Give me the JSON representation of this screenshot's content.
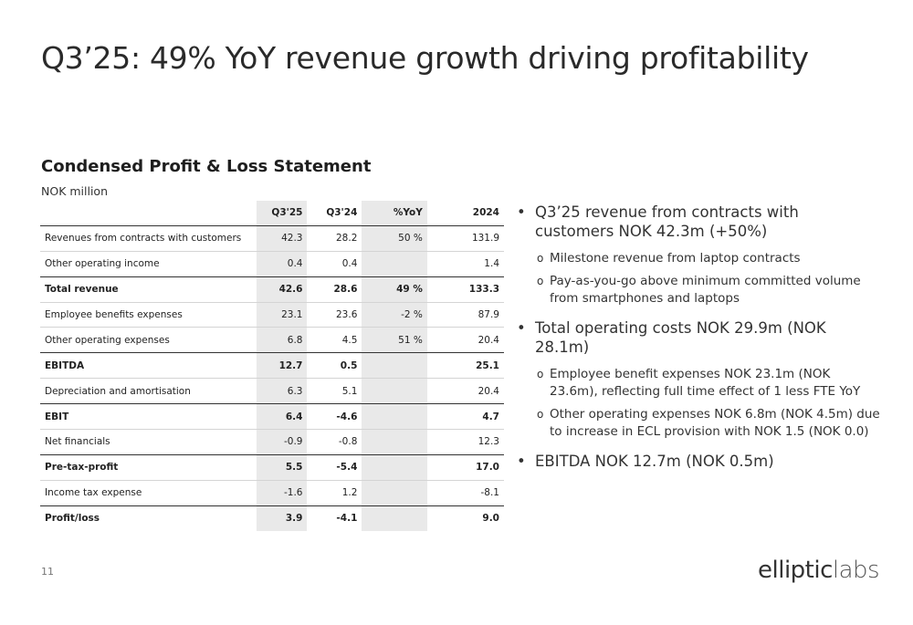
{
  "title": "Q3’25: 49% YoY revenue growth driving profitability",
  "section_title": "Condensed Profit & Loss Statement",
  "unit": "NOK million",
  "table": {
    "headers": [
      "",
      "Q3'25",
      "Q3'24",
      "%YoY",
      "2024"
    ],
    "rows": [
      {
        "label": "Revenues from contracts with customers",
        "q325": "42.3",
        "q324": "28.2",
        "yoy": "50 %",
        "y2024": "131.9"
      },
      {
        "label": "Other operating income",
        "q325": "0.4",
        "q324": "0.4",
        "yoy": "",
        "y2024": "1.4"
      },
      {
        "label": "Total revenue",
        "q325": "42.6",
        "q324": "28.6",
        "yoy": "49 %",
        "y2024": "133.3"
      },
      {
        "label": "Employee benefits expenses",
        "q325": "23.1",
        "q324": "23.6",
        "yoy": "-2 %",
        "y2024": "87.9"
      },
      {
        "label": "Other operating expenses",
        "q325": "6.8",
        "q324": "4.5",
        "yoy": "51 %",
        "y2024": "20.4"
      },
      {
        "label": "EBITDA",
        "q325": "12.7",
        "q324": "0.5",
        "yoy": "",
        "y2024": "25.1"
      },
      {
        "label": "Depreciation and amortisation",
        "q325": "6.3",
        "q324": "5.1",
        "yoy": "",
        "y2024": "20.4"
      },
      {
        "label": "EBIT",
        "q325": "6.4",
        "q324": "-4.6",
        "yoy": "",
        "y2024": "4.7"
      },
      {
        "label": "Net financials",
        "q325": "-0.9",
        "q324": "-0.8",
        "yoy": "",
        "y2024": "12.3"
      },
      {
        "label": "Pre-tax-profit",
        "q325": "5.5",
        "q324": "-5.4",
        "yoy": "",
        "y2024": "17.0"
      },
      {
        "label": "Income tax expense",
        "q325": "-1.6",
        "q324": "1.2",
        "yoy": "",
        "y2024": "-8.1"
      },
      {
        "label": "Profit/loss",
        "q325": "3.9",
        "q324": "-4.1",
        "yoy": "",
        "y2024": "9.0"
      }
    ]
  },
  "bullets": [
    {
      "text": "Q3’25 revenue from contracts with customers NOK 42.3m (+50%)",
      "sub": [
        "Milestone revenue from laptop contracts",
        "Pay-as-you-go above minimum committed volume from smartphones and laptops"
      ]
    },
    {
      "text": "Total operating costs NOK 29.9m (NOK 28.1m)",
      "sub": [
        "Employee benefit expenses NOK 23.1m (NOK 23.6m), reflecting full time effect of 1 less FTE YoY",
        "Other operating expenses NOK 6.8m (NOK 4.5m) due to increase in ECL provision with NOK 1.5 (NOK 0.0)"
      ]
    },
    {
      "text": "EBITDA NOK 12.7m (NOK 0.5m)",
      "sub": []
    }
  ],
  "page_number": "11",
  "logo": {
    "part1": "elliptic",
    "part2": "labs"
  }
}
